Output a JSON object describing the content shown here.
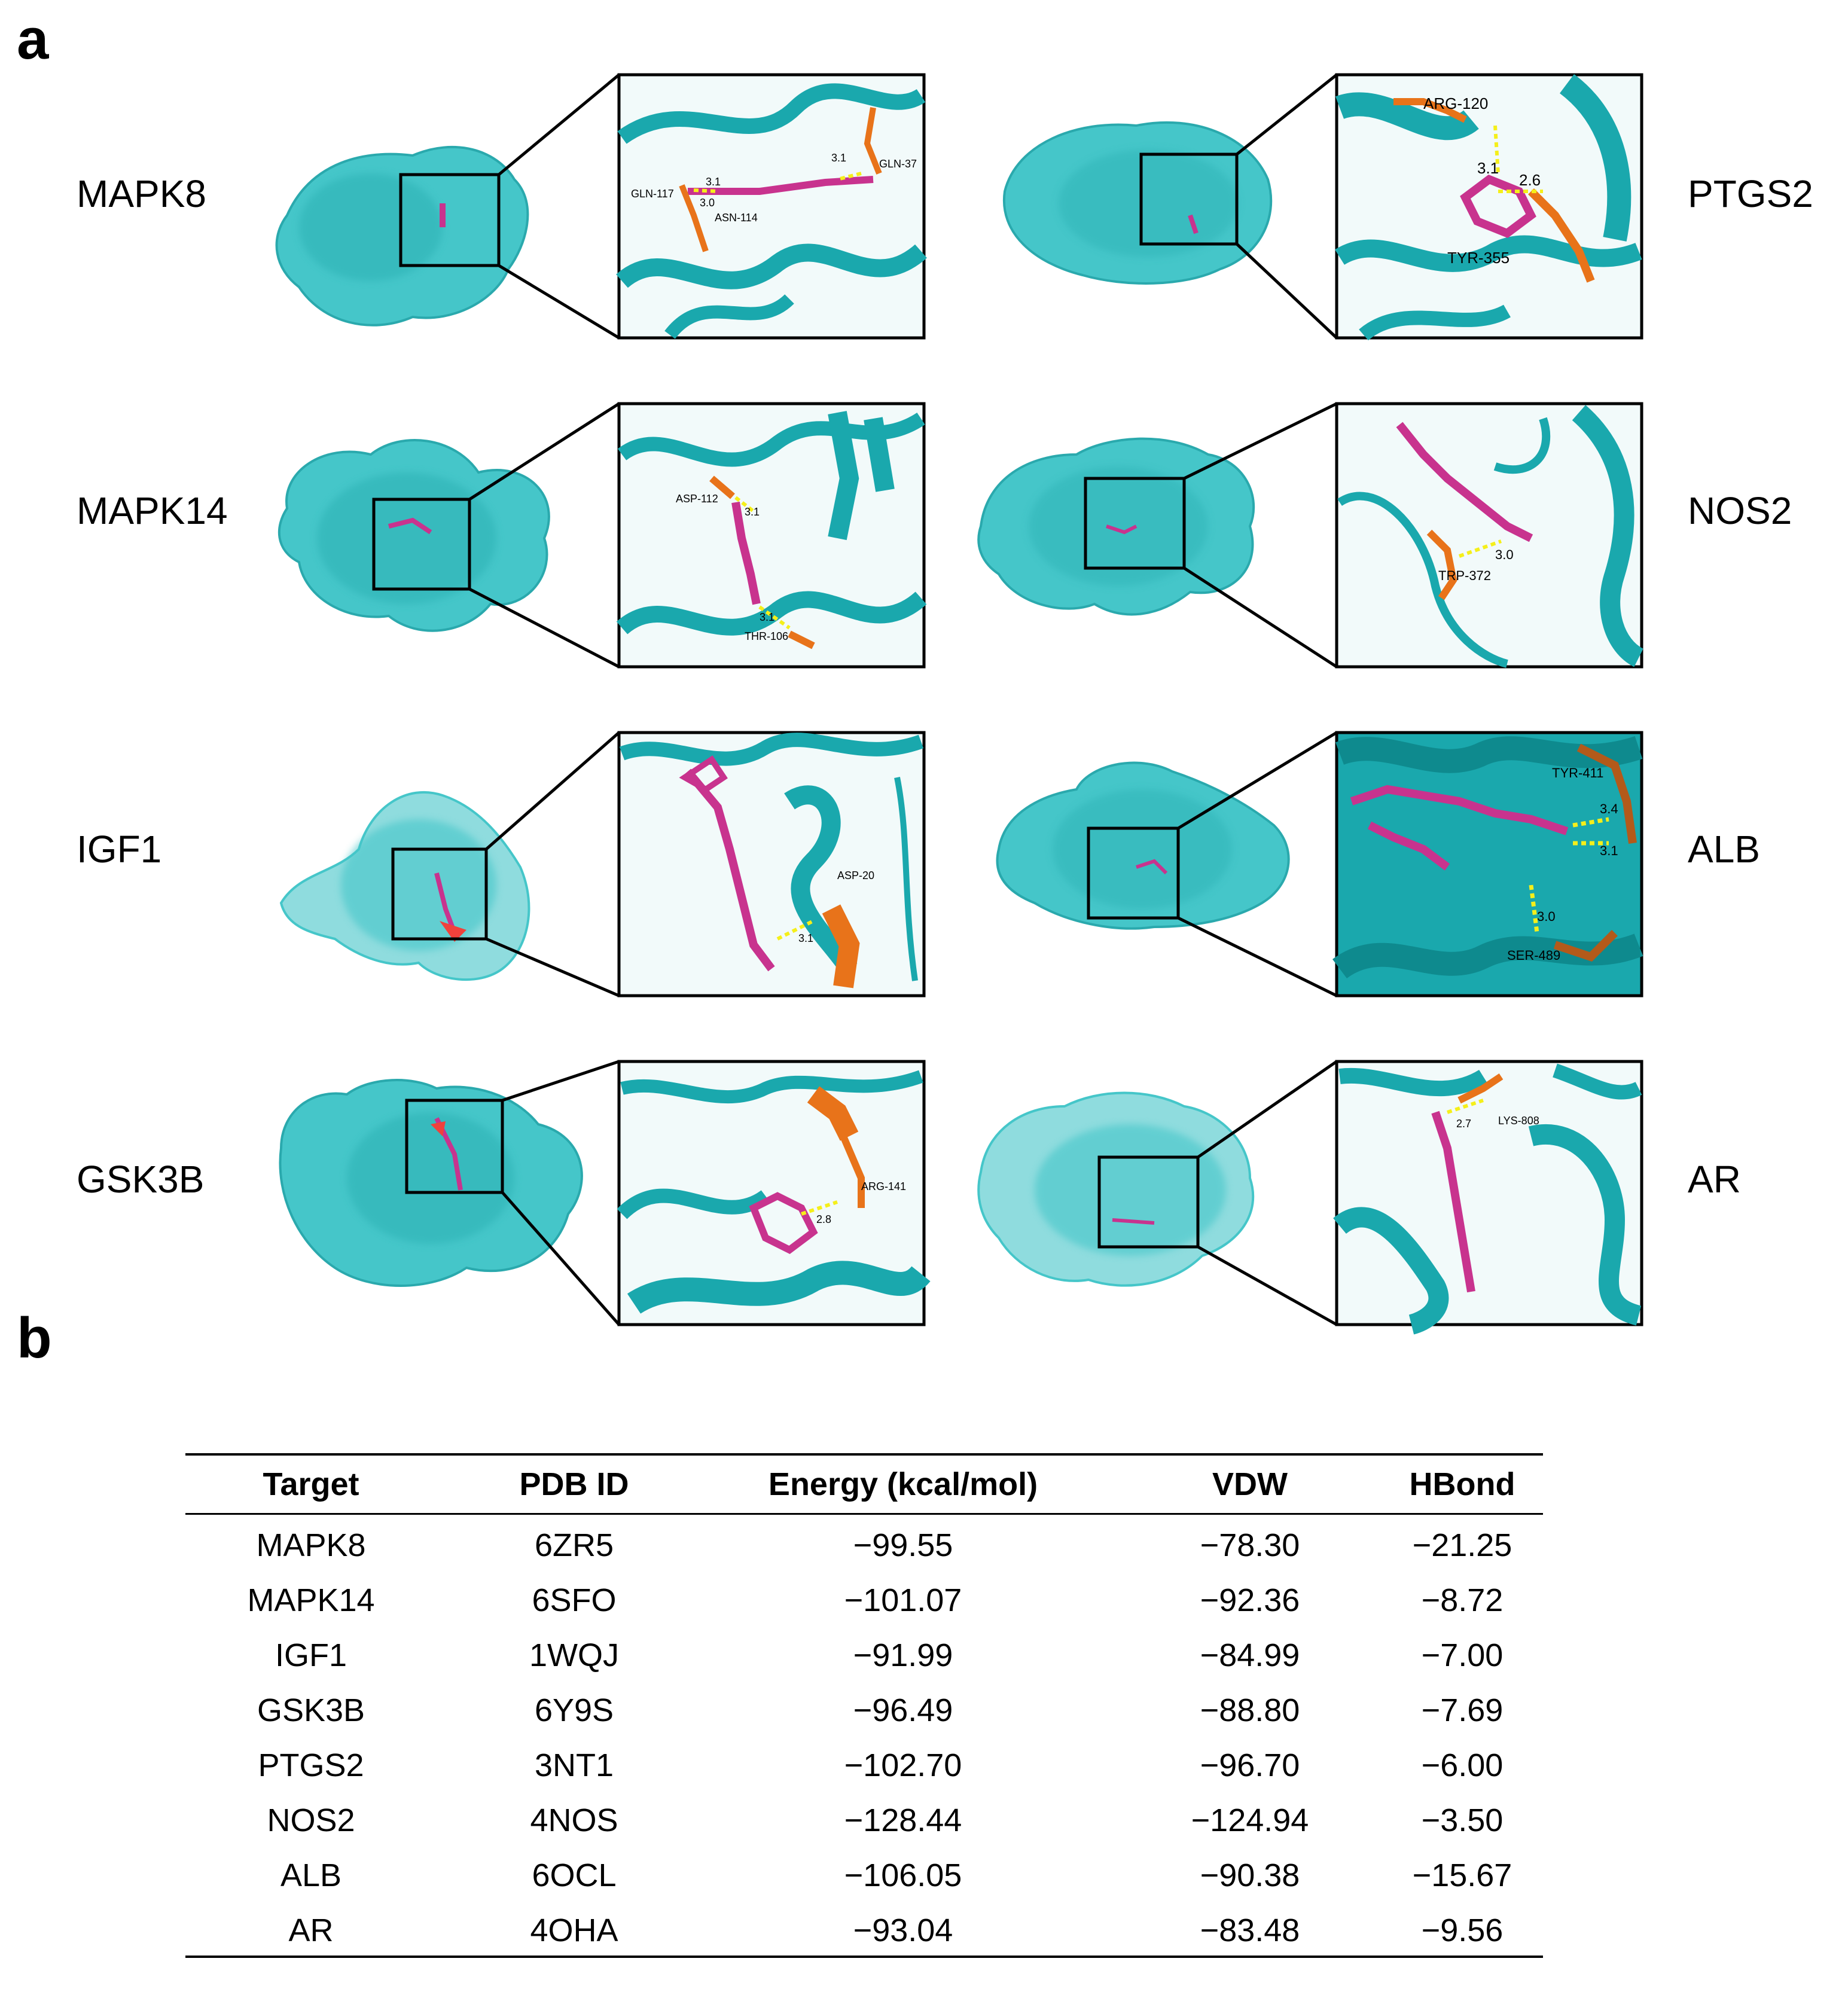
{
  "panel_a": {
    "letter": "a",
    "targets": [
      {
        "name": "MAPK8",
        "residues": [
          "GLN-117",
          "ASN-114",
          "GLN-37"
        ],
        "distances": [
          "3.1",
          "3.0",
          "3.1"
        ]
      },
      {
        "name": "MAPK14",
        "residues": [
          "ASP-112",
          "THR-106"
        ],
        "distances": [
          "3.1",
          "3.1"
        ]
      },
      {
        "name": "IGF1",
        "residues": [
          "ASP-20"
        ],
        "distances": [
          "3.1"
        ]
      },
      {
        "name": "GSK3B",
        "residues": [
          "ARG-141"
        ],
        "distances": [
          "2.8"
        ]
      },
      {
        "name": "PTGS2",
        "residues": [
          "ARG-120",
          "TYR-355"
        ],
        "distances": [
          "3.1",
          "2.6"
        ]
      },
      {
        "name": "NOS2",
        "residues": [
          "TRP-372"
        ],
        "distances": [
          "3.0"
        ]
      },
      {
        "name": "ALB",
        "residues": [
          "TYR-411",
          "SER-489"
        ],
        "distances": [
          "3.4",
          "3.1",
          "3.0"
        ]
      },
      {
        "name": "AR",
        "residues": [
          "LYS-808"
        ],
        "distances": [
          "2.7"
        ]
      }
    ],
    "colors": {
      "protein": "#1aa8ad",
      "surface": "#45c6c9",
      "ligand": "#c8338e",
      "residue": "#e8731a",
      "hbond": "#f5ef1a"
    }
  },
  "panel_b": {
    "letter": "b",
    "columns": [
      "Target",
      "PDB ID",
      "Energy (kcal/mol)",
      "VDW",
      "HBond"
    ],
    "rows": [
      [
        "MAPK8",
        "6ZR5",
        "−99.55",
        "−78.30",
        "−21.25"
      ],
      [
        "MAPK14",
        "6SFO",
        "−101.07",
        "−92.36",
        "−8.72"
      ],
      [
        "IGF1",
        "1WQJ",
        "−91.99",
        "−84.99",
        "−7.00"
      ],
      [
        "GSK3B",
        "6Y9S",
        "−96.49",
        "−88.80",
        "−7.69"
      ],
      [
        "PTGS2",
        "3NT1",
        "−102.70",
        "−96.70",
        "−6.00"
      ],
      [
        "NOS2",
        "4NOS",
        "−128.44",
        "−124.94",
        "−3.50"
      ],
      [
        "ALB",
        "6OCL",
        "−106.05",
        "−90.38",
        "−15.67"
      ],
      [
        "AR",
        "4OHA",
        "−93.04",
        "−83.48",
        "−9.56"
      ]
    ]
  }
}
